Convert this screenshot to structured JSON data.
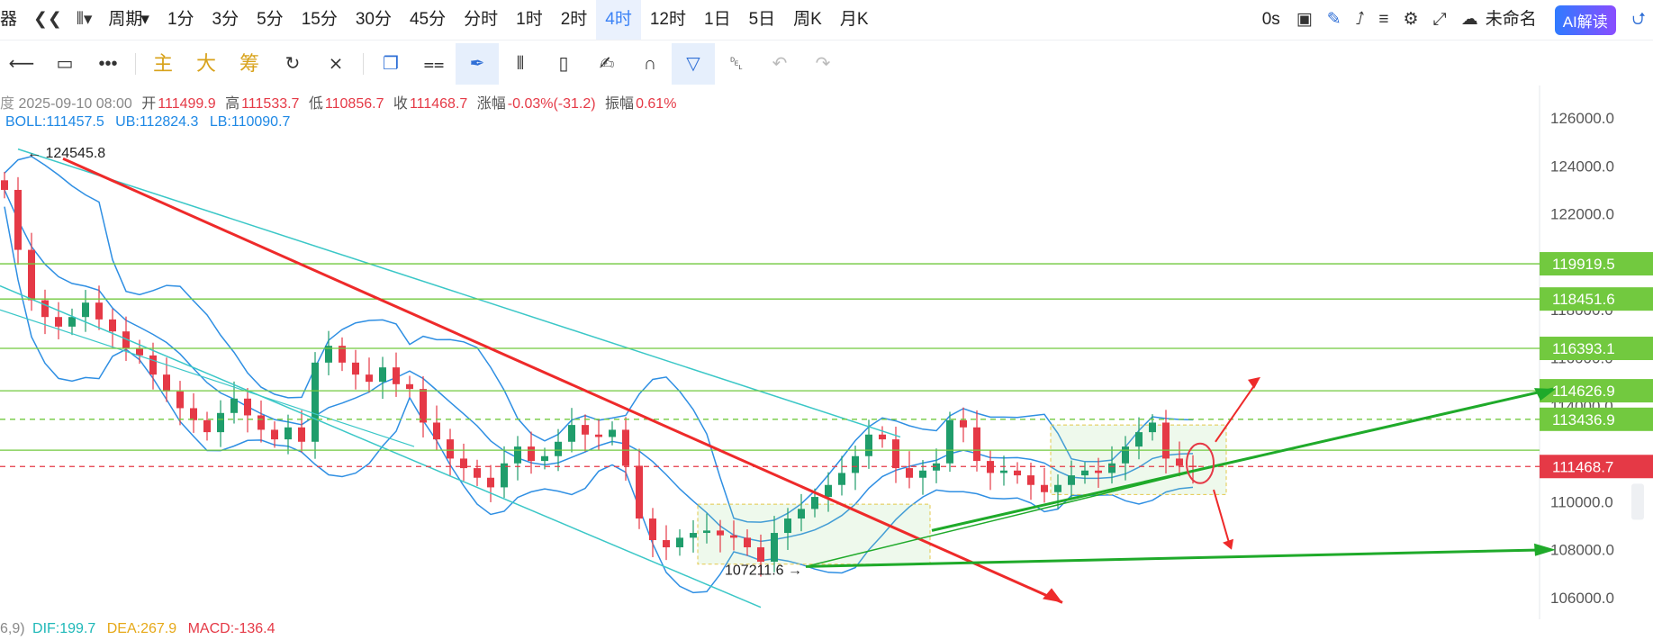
{
  "toolbar": {
    "items": [
      "周期",
      "1分",
      "3分",
      "5分",
      "15分",
      "30分",
      "45分",
      "分时",
      "1时",
      "2时",
      "4时",
      "12时",
      "1日",
      "5日",
      "周K",
      "月K"
    ],
    "active": "4时",
    "left_glyph": "器",
    "seconds": "0s",
    "account": "未命名",
    "ai_button": "AI解读",
    "icons": [
      "back-icon",
      "candle-type-icon",
      "camera-icon",
      "pen-icon",
      "external-icon",
      "list-icon",
      "settings-icon",
      "fullscreen-icon",
      "cloud-icon",
      "share-icon"
    ]
  },
  "drawing_tools": {
    "text_tools": [
      "主",
      "大",
      "筹"
    ],
    "icons": [
      "horizontal-line-icon",
      "rectangle-icon",
      "more-icon",
      "sync-icon",
      "measure-icon",
      "copy-icon",
      "ruler-icon",
      "brush-icon",
      "candles-icon",
      "clipboard-icon",
      "note-icon",
      "magnet-icon",
      "filter-icon",
      "trash-icon",
      "undo-icon",
      "redo-icon"
    ]
  },
  "ohlc": {
    "prefix": "度",
    "date": "2025-09-10 08:00",
    "open_label": "开",
    "open": "111499.9",
    "high_label": "高",
    "high": "111533.7",
    "low_label": "低",
    "low": "110856.7",
    "close_label": "收",
    "close": "111468.7",
    "change_label": "涨幅",
    "change": "-0.03%(-31.2)",
    "amp_label": "振幅",
    "amp": "0.61%"
  },
  "boll": {
    "mid": "BOLL:111457.5",
    "ub": "UB:112824.3",
    "lb": "LB:110090.7"
  },
  "macd": {
    "params": "6,9)",
    "dif": "DIF:199.7",
    "dea": "DEA:267.9",
    "macd": "MACD:-136.4"
  },
  "chart_data": {
    "type": "candlestick",
    "timeframe": "4时",
    "y_axis_ticks": [
      126000,
      124000,
      122000,
      120000,
      118000,
      116000,
      114000,
      112000,
      110000,
      108000,
      106000
    ],
    "y_axis_tick_labels_visible": [
      "126000.0",
      "124000.0",
      "122000.0",
      "110000.0",
      "108000.0",
      "106000.0"
    ],
    "ylim": [
      105500,
      126600
    ],
    "horizontal_levels": [
      {
        "value": 119919.5,
        "label": "119919.5",
        "color": "#72c93f"
      },
      {
        "value": 118451.6,
        "label": "118451.6",
        "color": "#72c93f"
      },
      {
        "value": 116393.1,
        "label": "116393.1",
        "color": "#72c93f"
      },
      {
        "value": 114626.9,
        "label": "114626.9",
        "color": "#72c93f"
      },
      {
        "value": 113436.9,
        "label": "113436.9",
        "color": "#72c93f",
        "dashed": true
      },
      {
        "value": 111468.7,
        "label": "111468.7",
        "color": "#e53946",
        "dashed": true,
        "current": true
      }
    ],
    "annotations": [
      {
        "text": "124545.8",
        "value": 124545.8,
        "kind": "high"
      },
      {
        "text": "107211.6",
        "value": 107211.6,
        "kind": "low"
      }
    ],
    "colors": {
      "up": "#1f9d6b",
      "down": "#e53946",
      "boll": "#2f8fe3",
      "channel": "#3bc7c7",
      "trend_red": "#ee2a2a",
      "trend_green": "#1faa2a",
      "level": "#72c93f"
    },
    "close_series": [
      123000,
      120500,
      118400,
      117700,
      117300,
      117700,
      118300,
      117600,
      117100,
      116400,
      116100,
      115300,
      114600,
      113900,
      113400,
      112900,
      113700,
      114300,
      113600,
      113000,
      112600,
      113100,
      112500,
      115800,
      116500,
      115800,
      115300,
      115000,
      115600,
      114900,
      114700,
      113300,
      112600,
      111800,
      111400,
      111000,
      110600,
      111600,
      112300,
      111700,
      111900,
      112500,
      113200,
      112800,
      112700,
      113000,
      111500,
      109300,
      108400,
      108100,
      108500,
      108700,
      108800,
      108600,
      108500,
      108100,
      107500,
      108700,
      109300,
      109700,
      110200,
      110700,
      111200,
      111900,
      112800,
      112600,
      111400,
      111000,
      111300,
      111600,
      113400,
      113100,
      111700,
      111200,
      111300,
      111100,
      110700,
      110400,
      110700,
      111100,
      111300,
      111200,
      111600,
      112300,
      112900,
      113300,
      111800,
      111499.9,
      111468.7
    ]
  }
}
